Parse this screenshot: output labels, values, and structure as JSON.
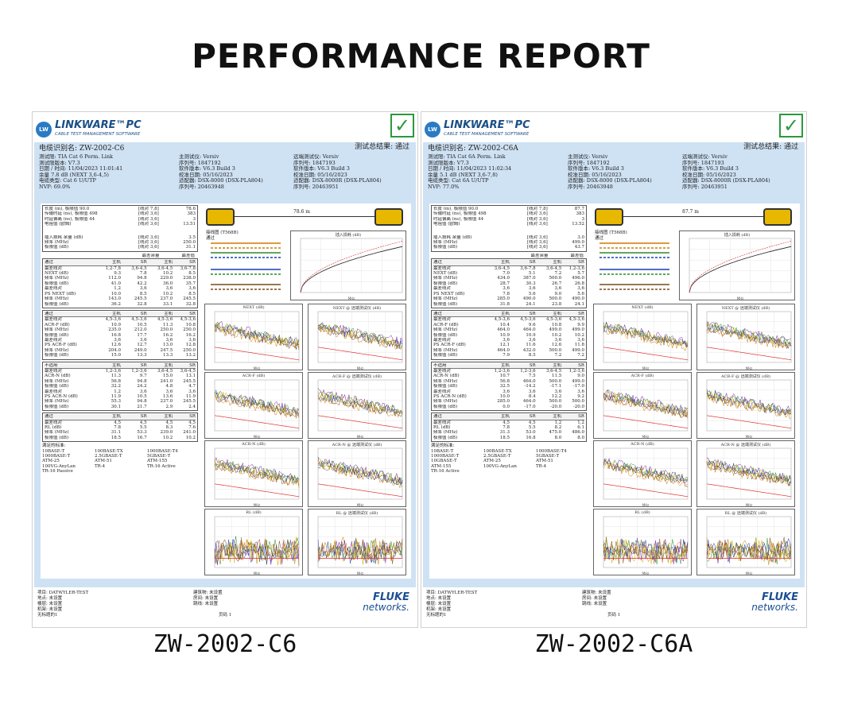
{
  "title": "PERFORMANCE REPORT",
  "captions": [
    "ZW-2002-C6",
    "ZW-2002-C6A"
  ],
  "brand": {
    "logo_badge": "LW",
    "logo_name": "LINKWARE™PC",
    "logo_sub": "CABLE TEST MANAGEMENT SOFTWARE",
    "fluke_top": "FLUKE",
    "fluke_bottom": "networks."
  },
  "colors": {
    "panel_blue": "#cfe2f4",
    "check_green": "#2a9a3c",
    "brand_blue": "#1a4f86"
  },
  "reports": [
    {
      "cable_id": "电缆识别名: ZW-2002-C6",
      "verdict": "测试总结果: 通过",
      "info_left": [
        "测试限: TIA Cat 6 Perm. Link",
        "测试限版本: V7.3",
        "日期 / 时间: 11/04/2023  11:01:41",
        "余量 7.8 dB (NEXT 3,6-4,5)",
        "电缆类型: Cat 6 U/UTP",
        "NVP: 69.0%"
      ],
      "info_mid": [
        "主测试仪: Versiv",
        "序列号: 1847192",
        "软件版本: V6.3 Build 3",
        "校准日期: 05/16/2023",
        "适配器: DSX-8000 (DSX-PLA804)",
        "序列号: 20463948"
      ],
      "info_right": [
        "远端测试仪: Versiv",
        "序列号: 1847193",
        "软件版本: V6.3 Build 3",
        "校准日期: 05/16/2023",
        "适配器: DSX-8000R (DSX-PLA804)",
        "序列号: 20463951"
      ],
      "summary": [
        [
          "长度 (m), 极限值 90.0",
          "[线对 7,8]",
          "78.6"
        ],
        [
          "传输时延 (ns), 极限值 498",
          "[线对 3,6]",
          "383"
        ],
        [
          "时延偏离 (ns), 极限值 44",
          "[线对 3,6]",
          "3"
        ],
        [
          "电阻值 (欧姆)",
          "[线对 3,6]",
          "13.51"
        ],
        [
          "插入损耗 余量 (dB)",
          "[线对 3,6]",
          "3.5"
        ],
        [
          "频率 (MHz)",
          "[线对 3,6]",
          "250.0"
        ],
        [
          "极限值 (dB)",
          "[线对 3,6]",
          "31.1"
        ]
      ],
      "margin_header": [
        "最差余量",
        "最差值"
      ],
      "groups": [
        {
          "head": [
            "通过",
            "主机",
            "SR",
            "主机",
            "SR"
          ],
          "rows": [
            [
              "最差线对",
              "1,2-7,8",
              "3,6-4,5",
              "3,6-4,5",
              "3,6-7,8"
            ],
            [
              "NEXT (dB)",
              "9.3",
              "7.8",
              "10.2",
              "8.5"
            ],
            [
              "频率 (MHz)",
              "112.0",
              "94.8",
              "229.0",
              "238.0"
            ],
            [
              "极限值 (dB)",
              "41.0",
              "42.2",
              "36.0",
              "35.7"
            ],
            [
              "最差线对",
              "1,2",
              "3,6",
              "3,6",
              "3,6"
            ],
            [
              "PS NEXT (dB)",
              "10.0",
              "8.5",
              "10.2",
              "8.5"
            ],
            [
              "频率 (MHz)",
              "143.0",
              "245.5",
              "237.0",
              "245.5"
            ],
            [
              "极限值 (dB)",
              "36.2",
              "32.8",
              "33.1",
              "32.8"
            ]
          ]
        },
        {
          "head": [
            "通过",
            "主机",
            "SR",
            "主机",
            "SR"
          ],
          "rows": [
            [
              "最差线对",
              "4,5-3,6",
              "4,5-3,6",
              "4,5-3,6",
              "4,5-3,6"
            ],
            [
              "ACR-F (dB)",
              "10.9",
              "10.5",
              "11.3",
              "10.8"
            ],
            [
              "频率 (MHz)",
              "235.0",
              "212.0",
              "250.0",
              "250.0"
            ],
            [
              "极限值 (dB)",
              "16.8",
              "17.7",
              "16.2",
              "16.2"
            ],
            [
              "最差线对",
              "3,6",
              "3,6",
              "3,6",
              "3,6"
            ],
            [
              "PS ACR-F (dB)",
              "12.6",
              "12.7",
              "13.0",
              "12.8"
            ],
            [
              "频率 (MHz)",
              "204.0",
              "249.0",
              "247.5",
              "250.0"
            ],
            [
              "极限值 (dB)",
              "15.0",
              "13.3",
              "13.3",
              "13.2"
            ]
          ]
        },
        {
          "head": [
            "不适用",
            "主机",
            "SR",
            "主机",
            "SR"
          ],
          "rows": [
            [
              "最差线对",
              "1,2-3,6",
              "1,2-3,6",
              "3,6-4,5",
              "3,6-4,5"
            ],
            [
              "ACR-N (dB)",
              "11.3",
              "9.7",
              "15.0",
              "13.1"
            ],
            [
              "频率 (MHz)",
              "56.8",
              "94.8",
              "241.0",
              "245.5"
            ],
            [
              "极限值 (dB)",
              "32.2",
              "24.2",
              "4.8",
              "4.7"
            ],
            [
              "最差线对",
              "1,2",
              "3,6",
              "3,6",
              "3,6"
            ],
            [
              "PS ACR-N (dB)",
              "11.9",
              "10.5",
              "13.6",
              "11.9"
            ],
            [
              "频率 (MHz)",
              "55.3",
              "94.8",
              "237.0",
              "245.5"
            ],
            [
              "极限值 (dB)",
              "30.1",
              "21.7",
              "2.9",
              "2.4"
            ]
          ]
        },
        {
          "head": [
            "通过",
            "主机",
            "SR",
            "主机",
            "SR"
          ],
          "rows": [
            [
              "最差线对",
              "4,5",
              "4,5",
              "4,5",
              "4,5"
            ],
            [
              "RL (dB)",
              "7.8",
              "5.5",
              "8.3",
              "7.6"
            ],
            [
              "频率 (MHz)",
              "31.1",
              "53.3",
              "239.0",
              "241.0"
            ],
            [
              "极限值 (dB)",
              "18.5",
              "16.7",
              "10.2",
              "10.2"
            ]
          ]
        }
      ],
      "standards_title": "满足的标准:",
      "standards": [
        "10BASE-T",
        "100BASE-TX",
        "1000BASE-T4",
        "1000BASE-T",
        "2.5GBASE-T",
        "5GBASE-T",
        "ATM-25",
        "ATM-51",
        "ATM-155",
        "100VG-AnyLan",
        "TR-4",
        "TR-16 Active",
        "TR-16 Passive"
      ],
      "length_label": "78.6 m",
      "footer_left": [
        "项目: DATWYLER-TEST",
        "地点: 未设置",
        "楼层: 未设置",
        "机架: 未设置",
        "无标题的1"
      ],
      "footer_mid": [
        "建筑物: 未设置",
        "房间: 未设置",
        "跳线: 未设置"
      ],
      "page": "页码 1"
    },
    {
      "cable_id": "电缆识别名: ZW-2002-C6A",
      "verdict": "测试总结果: 通过",
      "info_left": [
        "测试限: TIA Cat 6A Perm. Link",
        "测试限版本: V7.3",
        "日期 / 时间: 11/04/2023  11:02:34",
        "余量 5.1 dB (NEXT 3,6-7,8)",
        "电缆类型: Cat 6A U/UTP",
        "NVP: 77.0%"
      ],
      "info_mid": [
        "主测试仪: Versiv",
        "序列号: 1847192",
        "软件版本: V6.3 Build 3",
        "校准日期: 05/16/2023",
        "适配器: DSX-8000 (DSX-PLA804)",
        "序列号: 20463948"
      ],
      "info_right": [
        "远端测试仪: Versiv",
        "序列号: 1847193",
        "软件版本: V6.3 Build 3",
        "校准日期: 05/16/2023",
        "适配器: DSX-8000R (DSX-PLA804)",
        "序列号: 20463951"
      ],
      "summary": [
        [
          "长度 (m), 极限值 90.0",
          "[线对 7,8]",
          "87.7"
        ],
        [
          "传输时延 (ns), 极限值 498",
          "[线对 3,6]",
          "383"
        ],
        [
          "时延偏离 (ns), 极限值 44",
          "[线对 3,6]",
          "3"
        ],
        [
          "电阻值 (欧姆)",
          "[线对 3,6]",
          "13.52"
        ],
        [
          "插入损耗 余量 (dB)",
          "[线对 3,6]",
          "3.0"
        ],
        [
          "频率 (MHz)",
          "[线对 3,6]",
          "499.0"
        ],
        [
          "极限值 (dB)",
          "[线对 3,6]",
          "43.7"
        ]
      ],
      "margin_header": [
        "最差余量",
        "最差值"
      ],
      "groups": [
        {
          "head": [
            "通过",
            "主机",
            "SR",
            "主机",
            "SR"
          ],
          "rows": [
            [
              "最差线对",
              "3,6-4,5",
              "3,6-7,8",
              "3,6-4,5",
              "1,2-3,6"
            ],
            [
              "NEXT (dB)",
              "7.0",
              "5.1",
              "7.2",
              "5.7"
            ],
            [
              "频率 (MHz)",
              "434.0",
              "387.0",
              "500.0",
              "496.0"
            ],
            [
              "极限值 (dB)",
              "28.7",
              "30.3",
              "26.7",
              "26.8"
            ],
            [
              "最差线对",
              "3,6",
              "3,6",
              "3,6",
              "3,6"
            ],
            [
              "PS NEXT (dB)",
              "7.8",
              "5.6",
              "9.0",
              "5.6"
            ],
            [
              "频率 (MHz)",
              "285.0",
              "490.0",
              "500.0",
              "490.0"
            ],
            [
              "极限值 (dB)",
              "31.8",
              "24.1",
              "23.8",
              "24.1"
            ]
          ]
        },
        {
          "head": [
            "通过",
            "主机",
            "SR",
            "主机",
            "SR"
          ],
          "rows": [
            [
              "最差线对",
              "4,5-3,6",
              "4,5-3,6",
              "4,5-3,6",
              "4,5-3,6"
            ],
            [
              "ACR-F (dB)",
              "10.4",
              "9.6",
              "10.8",
              "9.9"
            ],
            [
              "频率 (MHz)",
              "464.0",
              "464.0",
              "499.0",
              "499.0"
            ],
            [
              "极限值 (dB)",
              "10.9",
              "10.9",
              "10.2",
              "10.2"
            ],
            [
              "最差线对",
              "3,6",
              "3,6",
              "3,6",
              "3,6"
            ],
            [
              "PS ACR-F (dB)",
              "12.1",
              "11.6",
              "12.6",
              "11.8"
            ],
            [
              "频率 (MHz)",
              "464.0",
              "432.0",
              "500.0",
              "499.0"
            ],
            [
              "极限值 (dB)",
              "7.9",
              "8.5",
              "7.2",
              "7.2"
            ]
          ]
        },
        {
          "head": [
            "不适用",
            "主机",
            "SR",
            "主机",
            "SR"
          ],
          "rows": [
            [
              "最差线对",
              "1,2-3,6",
              "1,2-3,6",
              "3,6-4,5",
              "1,2-3,6"
            ],
            [
              "ACR-N (dB)",
              "10.7",
              "7.5",
              "11.5",
              "9.0"
            ],
            [
              "频率 (MHz)",
              "56.8",
              "464.0",
              "500.0",
              "499.0"
            ],
            [
              "极限值 (dB)",
              "32.5",
              "-14.2",
              "-17.1",
              "-17.0"
            ],
            [
              "最差线对",
              "3,6",
              "3,6",
              "3,6",
              "3,6"
            ],
            [
              "PS ACR-N (dB)",
              "10.0",
              "8.4",
              "12.2",
              "9.2"
            ],
            [
              "频率 (MHz)",
              "285.0",
              "464.0",
              "500.0",
              "500.0"
            ],
            [
              "极限值 (dB)",
              "0.0",
              "-17.0",
              "-20.0",
              "-20.0"
            ]
          ]
        },
        {
          "head": [
            "通过",
            "主机",
            "SR",
            "主机",
            "SR"
          ],
          "rows": [
            [
              "最差线对",
              "4,5",
              "4,5",
              "1,2",
              "1,2"
            ],
            [
              "RL (dB)",
              "7.8",
              "5.5",
              "8.2",
              "6.1"
            ],
            [
              "频率 (MHz)",
              "31.3",
              "53.0",
              "475.0",
              "486.0"
            ],
            [
              "极限值 (dB)",
              "18.5",
              "16.8",
              "8.0",
              "8.0"
            ]
          ]
        }
      ],
      "standards_title": "满足的标准:",
      "standards": [
        "10BASE-T",
        "100BASE-TX",
        "1000BASE-T4",
        "1000BASE-T",
        "2.5GBASE-T",
        "5GBASE-T",
        "10GBASE-T",
        "ATM-25",
        "ATM-51",
        "ATM-155",
        "100VG-AnyLan",
        "TR-4",
        "TR-16 Active"
      ],
      "length_label": "87.7 m",
      "footer_left": [
        "项目: DATWYLER-TEST",
        "地点: 未设置",
        "楼层: 未设置",
        "机架: 未设置",
        "无标题的1"
      ],
      "footer_mid": [
        "建筑物: 未设置",
        "房间: 未设置",
        "跳线: 未设置"
      ],
      "page": "页码 1"
    }
  ],
  "chart_titles": [
    "NEXT (dB)",
    "NEXT @ 远端测试仪 (dB)",
    "ACR-F (dB)",
    "ACR-F @ 远端测试仪 (dB)",
    "ACR-N (dB)",
    "ACR-N @ 远端测试仪 (dB)",
    "RL (dB)",
    "RL @ 远端测试仪 (dB)"
  ],
  "il_title": "插入损耗 (dB)",
  "wiremap_title": "接线图 (T568B)",
  "wiremap_status": "通过",
  "x_unit": "MHz"
}
